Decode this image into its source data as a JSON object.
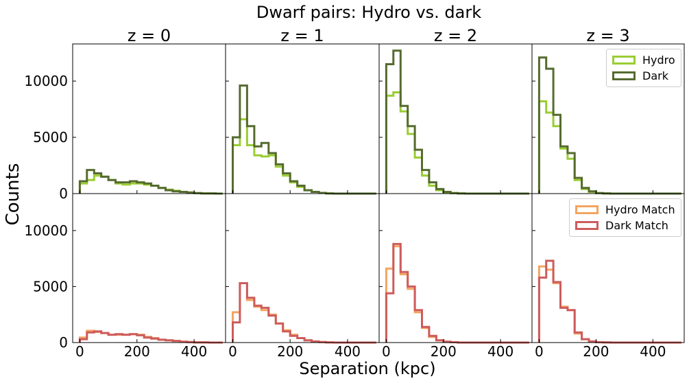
{
  "figure": {
    "title": "Dwarf pairs: Hydro vs. dark",
    "xlabel": "Separation (kpc)",
    "ylabel": "Counts"
  },
  "legends": {
    "top": [
      {
        "label": "Hydro",
        "color": "#9acd32"
      },
      {
        "label": "Dark",
        "color": "#556b2f"
      }
    ],
    "bottom": [
      {
        "label": "Hydro Match",
        "color": "#f4a460"
      },
      {
        "label": "Dark Match",
        "color": "#cd5c5c"
      }
    ]
  },
  "chart_data": {
    "type": "step histogram",
    "grid": false,
    "bin_width": 25,
    "bin_edges": [
      0,
      25,
      50,
      75,
      100,
      125,
      150,
      175,
      200,
      225,
      250,
      275,
      300,
      325,
      350,
      375,
      400,
      425,
      450,
      475,
      500
    ],
    "xlim": [
      -25,
      510
    ],
    "ylim": [
      0,
      13300
    ],
    "xticks": [
      0,
      200,
      400
    ],
    "yticks": [
      0,
      5000,
      10000
    ],
    "columns": [
      "z = 0",
      "z = 1",
      "z = 2",
      "z = 3"
    ],
    "rows": [
      {
        "series": [
          {
            "name": "Hydro",
            "color": "#9acd32",
            "panels": [
              [
                900,
                1200,
                1600,
                1500,
                1200,
                900,
                800,
                900,
                900,
                800,
                700,
                500,
                350,
                250,
                150,
                100,
                50,
                20,
                10,
                0
              ],
              [
                4300,
                6600,
                4300,
                3400,
                3300,
                3400,
                2400,
                1600,
                1000,
                600,
                300,
                150,
                60,
                20,
                0,
                0,
                0,
                0,
                0,
                0
              ],
              [
                8700,
                9000,
                7300,
                5300,
                3200,
                1600,
                700,
                300,
                100,
                50,
                20,
                0,
                0,
                0,
                0,
                0,
                0,
                0,
                0,
                0
              ],
              [
                8200,
                7200,
                6000,
                4000,
                3100,
                1200,
                400,
                150,
                50,
                20,
                0,
                0,
                0,
                0,
                0,
                0,
                0,
                0,
                0,
                0
              ]
            ]
          },
          {
            "name": "Dark",
            "color": "#556b2f",
            "panels": [
              [
                1100,
                2100,
                1800,
                1500,
                1200,
                1000,
                1000,
                1100,
                1000,
                900,
                700,
                500,
                300,
                200,
                150,
                100,
                50,
                20,
                10,
                0
              ],
              [
                5000,
                9600,
                6000,
                4200,
                4500,
                3600,
                2600,
                1800,
                1100,
                700,
                300,
                150,
                60,
                20,
                0,
                0,
                0,
                0,
                0,
                0
              ],
              [
                11500,
                12700,
                7800,
                6000,
                3900,
                2100,
                1000,
                400,
                150,
                50,
                20,
                0,
                0,
                0,
                0,
                0,
                0,
                0,
                0,
                0
              ],
              [
                12100,
                11100,
                7000,
                4200,
                3600,
                1400,
                500,
                200,
                50,
                20,
                0,
                0,
                0,
                0,
                0,
                0,
                0,
                0,
                0,
                0
              ]
            ]
          }
        ]
      },
      {
        "series": [
          {
            "name": "Hydro Match",
            "color": "#f4a460",
            "panels": [
              [
                450,
                1050,
                950,
                850,
                700,
                700,
                700,
                750,
                700,
                500,
                400,
                250,
                200,
                150,
                80,
                40,
                20,
                10,
                0,
                0
              ],
              [
                2700,
                5300,
                3800,
                3200,
                2900,
                2500,
                1700,
                1100,
                700,
                400,
                200,
                100,
                40,
                20,
                0,
                0,
                0,
                0,
                0,
                0
              ],
              [
                6600,
                8600,
                6100,
                4800,
                2700,
                1300,
                500,
                200,
                80,
                30,
                0,
                0,
                0,
                0,
                0,
                0,
                0,
                0,
                0,
                0
              ],
              [
                6800,
                6500,
                5300,
                3200,
                2900,
                800,
                300,
                100,
                30,
                10,
                0,
                0,
                0,
                0,
                0,
                0,
                0,
                0,
                0,
                0
              ]
            ]
          },
          {
            "name": "Dark Match",
            "color": "#cd5c5c",
            "panels": [
              [
                300,
                900,
                1000,
                850,
                700,
                750,
                700,
                750,
                650,
                450,
                350,
                250,
                200,
                150,
                80,
                40,
                20,
                10,
                0,
                0
              ],
              [
                1800,
                5300,
                4000,
                3300,
                3100,
                2400,
                1700,
                1000,
                600,
                400,
                200,
                100,
                40,
                20,
                0,
                0,
                0,
                0,
                0,
                0
              ],
              [
                4400,
                8800,
                6300,
                5000,
                2900,
                1400,
                600,
                200,
                80,
                30,
                0,
                0,
                0,
                0,
                0,
                0,
                0,
                0,
                0,
                0
              ],
              [
                5800,
                7300,
                5400,
                3100,
                2900,
                900,
                300,
                100,
                30,
                10,
                0,
                0,
                0,
                0,
                0,
                0,
                0,
                0,
                0,
                0
              ]
            ]
          }
        ]
      }
    ]
  }
}
